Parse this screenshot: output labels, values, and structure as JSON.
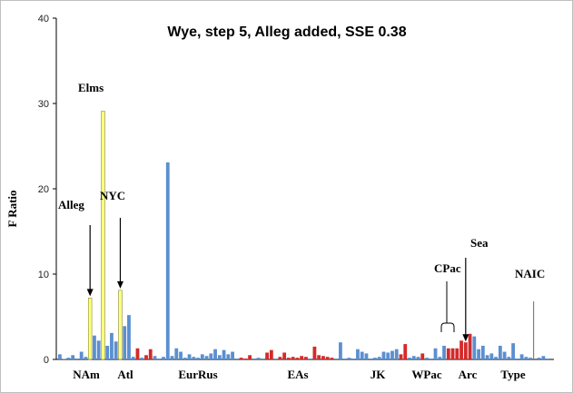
{
  "chart_data": {
    "type": "bar",
    "title": "Wye, step 5, Alleg added, SSE 0.38",
    "ylabel": "F Ratio",
    "xlabel": "",
    "ylim": [
      0,
      40
    ],
    "yticks": [
      "0",
      "10",
      "20",
      "30",
      "40"
    ],
    "grid": false,
    "legend": "none",
    "colors": {
      "blue": "#5b8fd0",
      "yellow": "#ffff7f",
      "red": "#d42a2a",
      "gray": "#808080"
    },
    "values": [
      {
        "v": 0.6,
        "c": "blue"
      },
      {
        "v": 0,
        "c": "blue"
      },
      {
        "v": 0.2,
        "c": "blue"
      },
      {
        "v": 0.5,
        "c": "blue"
      },
      {
        "v": 0.1,
        "c": "blue"
      },
      {
        "v": 0.9,
        "c": "blue"
      },
      {
        "v": 0.3,
        "c": "blue"
      },
      {
        "v": 7.2,
        "c": "yellow"
      },
      {
        "v": 2.8,
        "c": "blue"
      },
      {
        "v": 2.2,
        "c": "blue"
      },
      {
        "v": 29.1,
        "c": "yellow"
      },
      {
        "v": 1.6,
        "c": "blue"
      },
      {
        "v": 3.1,
        "c": "blue"
      },
      {
        "v": 2.1,
        "c": "blue"
      },
      {
        "v": 8.1,
        "c": "yellow"
      },
      {
        "v": 3.9,
        "c": "blue"
      },
      {
        "v": 5.2,
        "c": "blue"
      },
      {
        "v": 0.3,
        "c": "blue"
      },
      {
        "v": 1.3,
        "c": "red"
      },
      {
        "v": 0.2,
        "c": "blue"
      },
      {
        "v": 0.5,
        "c": "red"
      },
      {
        "v": 1.2,
        "c": "red"
      },
      {
        "v": 0.4,
        "c": "blue"
      },
      {
        "v": 0.1,
        "c": "blue"
      },
      {
        "v": 0.3,
        "c": "blue"
      },
      {
        "v": 23.1,
        "c": "blue"
      },
      {
        "v": 0.4,
        "c": "blue"
      },
      {
        "v": 1.3,
        "c": "blue"
      },
      {
        "v": 0.9,
        "c": "blue"
      },
      {
        "v": 0.2,
        "c": "blue"
      },
      {
        "v": 0.6,
        "c": "blue"
      },
      {
        "v": 0.3,
        "c": "blue"
      },
      {
        "v": 0.2,
        "c": "blue"
      },
      {
        "v": 0.6,
        "c": "blue"
      },
      {
        "v": 0.4,
        "c": "blue"
      },
      {
        "v": 0.7,
        "c": "blue"
      },
      {
        "v": 1.2,
        "c": "blue"
      },
      {
        "v": 0.5,
        "c": "blue"
      },
      {
        "v": 1.1,
        "c": "blue"
      },
      {
        "v": 0.6,
        "c": "blue"
      },
      {
        "v": 0.9,
        "c": "blue"
      },
      {
        "v": 0.1,
        "c": "blue"
      },
      {
        "v": 0.2,
        "c": "red"
      },
      {
        "v": 0.1,
        "c": "red"
      },
      {
        "v": 0.5,
        "c": "red"
      },
      {
        "v": 0.1,
        "c": "blue"
      },
      {
        "v": 0.2,
        "c": "blue"
      },
      {
        "v": 0.1,
        "c": "blue"
      },
      {
        "v": 0.8,
        "c": "red"
      },
      {
        "v": 1.1,
        "c": "red"
      },
      {
        "v": 0.1,
        "c": "blue"
      },
      {
        "v": 0.3,
        "c": "red"
      },
      {
        "v": 0.8,
        "c": "red"
      },
      {
        "v": 0.2,
        "c": "red"
      },
      {
        "v": 0.3,
        "c": "red"
      },
      {
        "v": 0.2,
        "c": "red"
      },
      {
        "v": 0.4,
        "c": "red"
      },
      {
        "v": 0.3,
        "c": "red"
      },
      {
        "v": 0.1,
        "c": "blue"
      },
      {
        "v": 1.5,
        "c": "red"
      },
      {
        "v": 0.5,
        "c": "red"
      },
      {
        "v": 0.4,
        "c": "red"
      },
      {
        "v": 0.3,
        "c": "red"
      },
      {
        "v": 0.2,
        "c": "red"
      },
      {
        "v": 0.1,
        "c": "blue"
      },
      {
        "v": 2.0,
        "c": "blue"
      },
      {
        "v": 0.1,
        "c": "blue"
      },
      {
        "v": 0.2,
        "c": "blue"
      },
      {
        "v": 0.1,
        "c": "blue"
      },
      {
        "v": 1.2,
        "c": "blue"
      },
      {
        "v": 0.9,
        "c": "blue"
      },
      {
        "v": 0.7,
        "c": "blue"
      },
      {
        "v": 0.1,
        "c": "blue"
      },
      {
        "v": 0.2,
        "c": "blue"
      },
      {
        "v": 0.3,
        "c": "blue"
      },
      {
        "v": 0.9,
        "c": "blue"
      },
      {
        "v": 0.8,
        "c": "blue"
      },
      {
        "v": 1.0,
        "c": "blue"
      },
      {
        "v": 1.2,
        "c": "blue"
      },
      {
        "v": 0.6,
        "c": "red"
      },
      {
        "v": 1.8,
        "c": "red"
      },
      {
        "v": 0.2,
        "c": "blue"
      },
      {
        "v": 0.4,
        "c": "blue"
      },
      {
        "v": 0.3,
        "c": "blue"
      },
      {
        "v": 0.7,
        "c": "red"
      },
      {
        "v": 0.2,
        "c": "blue"
      },
      {
        "v": 0.1,
        "c": "blue"
      },
      {
        "v": 1.3,
        "c": "blue"
      },
      {
        "v": 0.3,
        "c": "blue"
      },
      {
        "v": 1.6,
        "c": "blue"
      },
      {
        "v": 1.3,
        "c": "red"
      },
      {
        "v": 1.3,
        "c": "red"
      },
      {
        "v": 1.3,
        "c": "red"
      },
      {
        "v": 2.2,
        "c": "red"
      },
      {
        "v": 2.0,
        "c": "red"
      },
      {
        "v": 3.0,
        "c": "red"
      },
      {
        "v": 2.7,
        "c": "blue"
      },
      {
        "v": 1.2,
        "c": "blue"
      },
      {
        "v": 1.6,
        "c": "blue"
      },
      {
        "v": 0.5,
        "c": "blue"
      },
      {
        "v": 0.7,
        "c": "blue"
      },
      {
        "v": 0.3,
        "c": "blue"
      },
      {
        "v": 1.6,
        "c": "blue"
      },
      {
        "v": 0.9,
        "c": "blue"
      },
      {
        "v": 0.3,
        "c": "blue"
      },
      {
        "v": 1.9,
        "c": "blue"
      },
      {
        "v": 0.1,
        "c": "blue"
      },
      {
        "v": 0.6,
        "c": "blue"
      },
      {
        "v": 0.3,
        "c": "blue"
      },
      {
        "v": 0.2,
        "c": "blue"
      },
      {
        "v": 6.8,
        "c": "gray"
      },
      {
        "v": 0.2,
        "c": "blue"
      },
      {
        "v": 0.4,
        "c": "blue"
      },
      {
        "v": 0.1,
        "c": "blue"
      }
    ],
    "category_labels": [
      "NAm",
      "Atl",
      "EurRus",
      "EAs",
      "JK",
      "WPac",
      "Arc",
      "Type"
    ],
    "annotations": [
      "Alleg",
      "Elms",
      "NYC",
      "CPac",
      "Sea",
      "NAIC"
    ]
  }
}
